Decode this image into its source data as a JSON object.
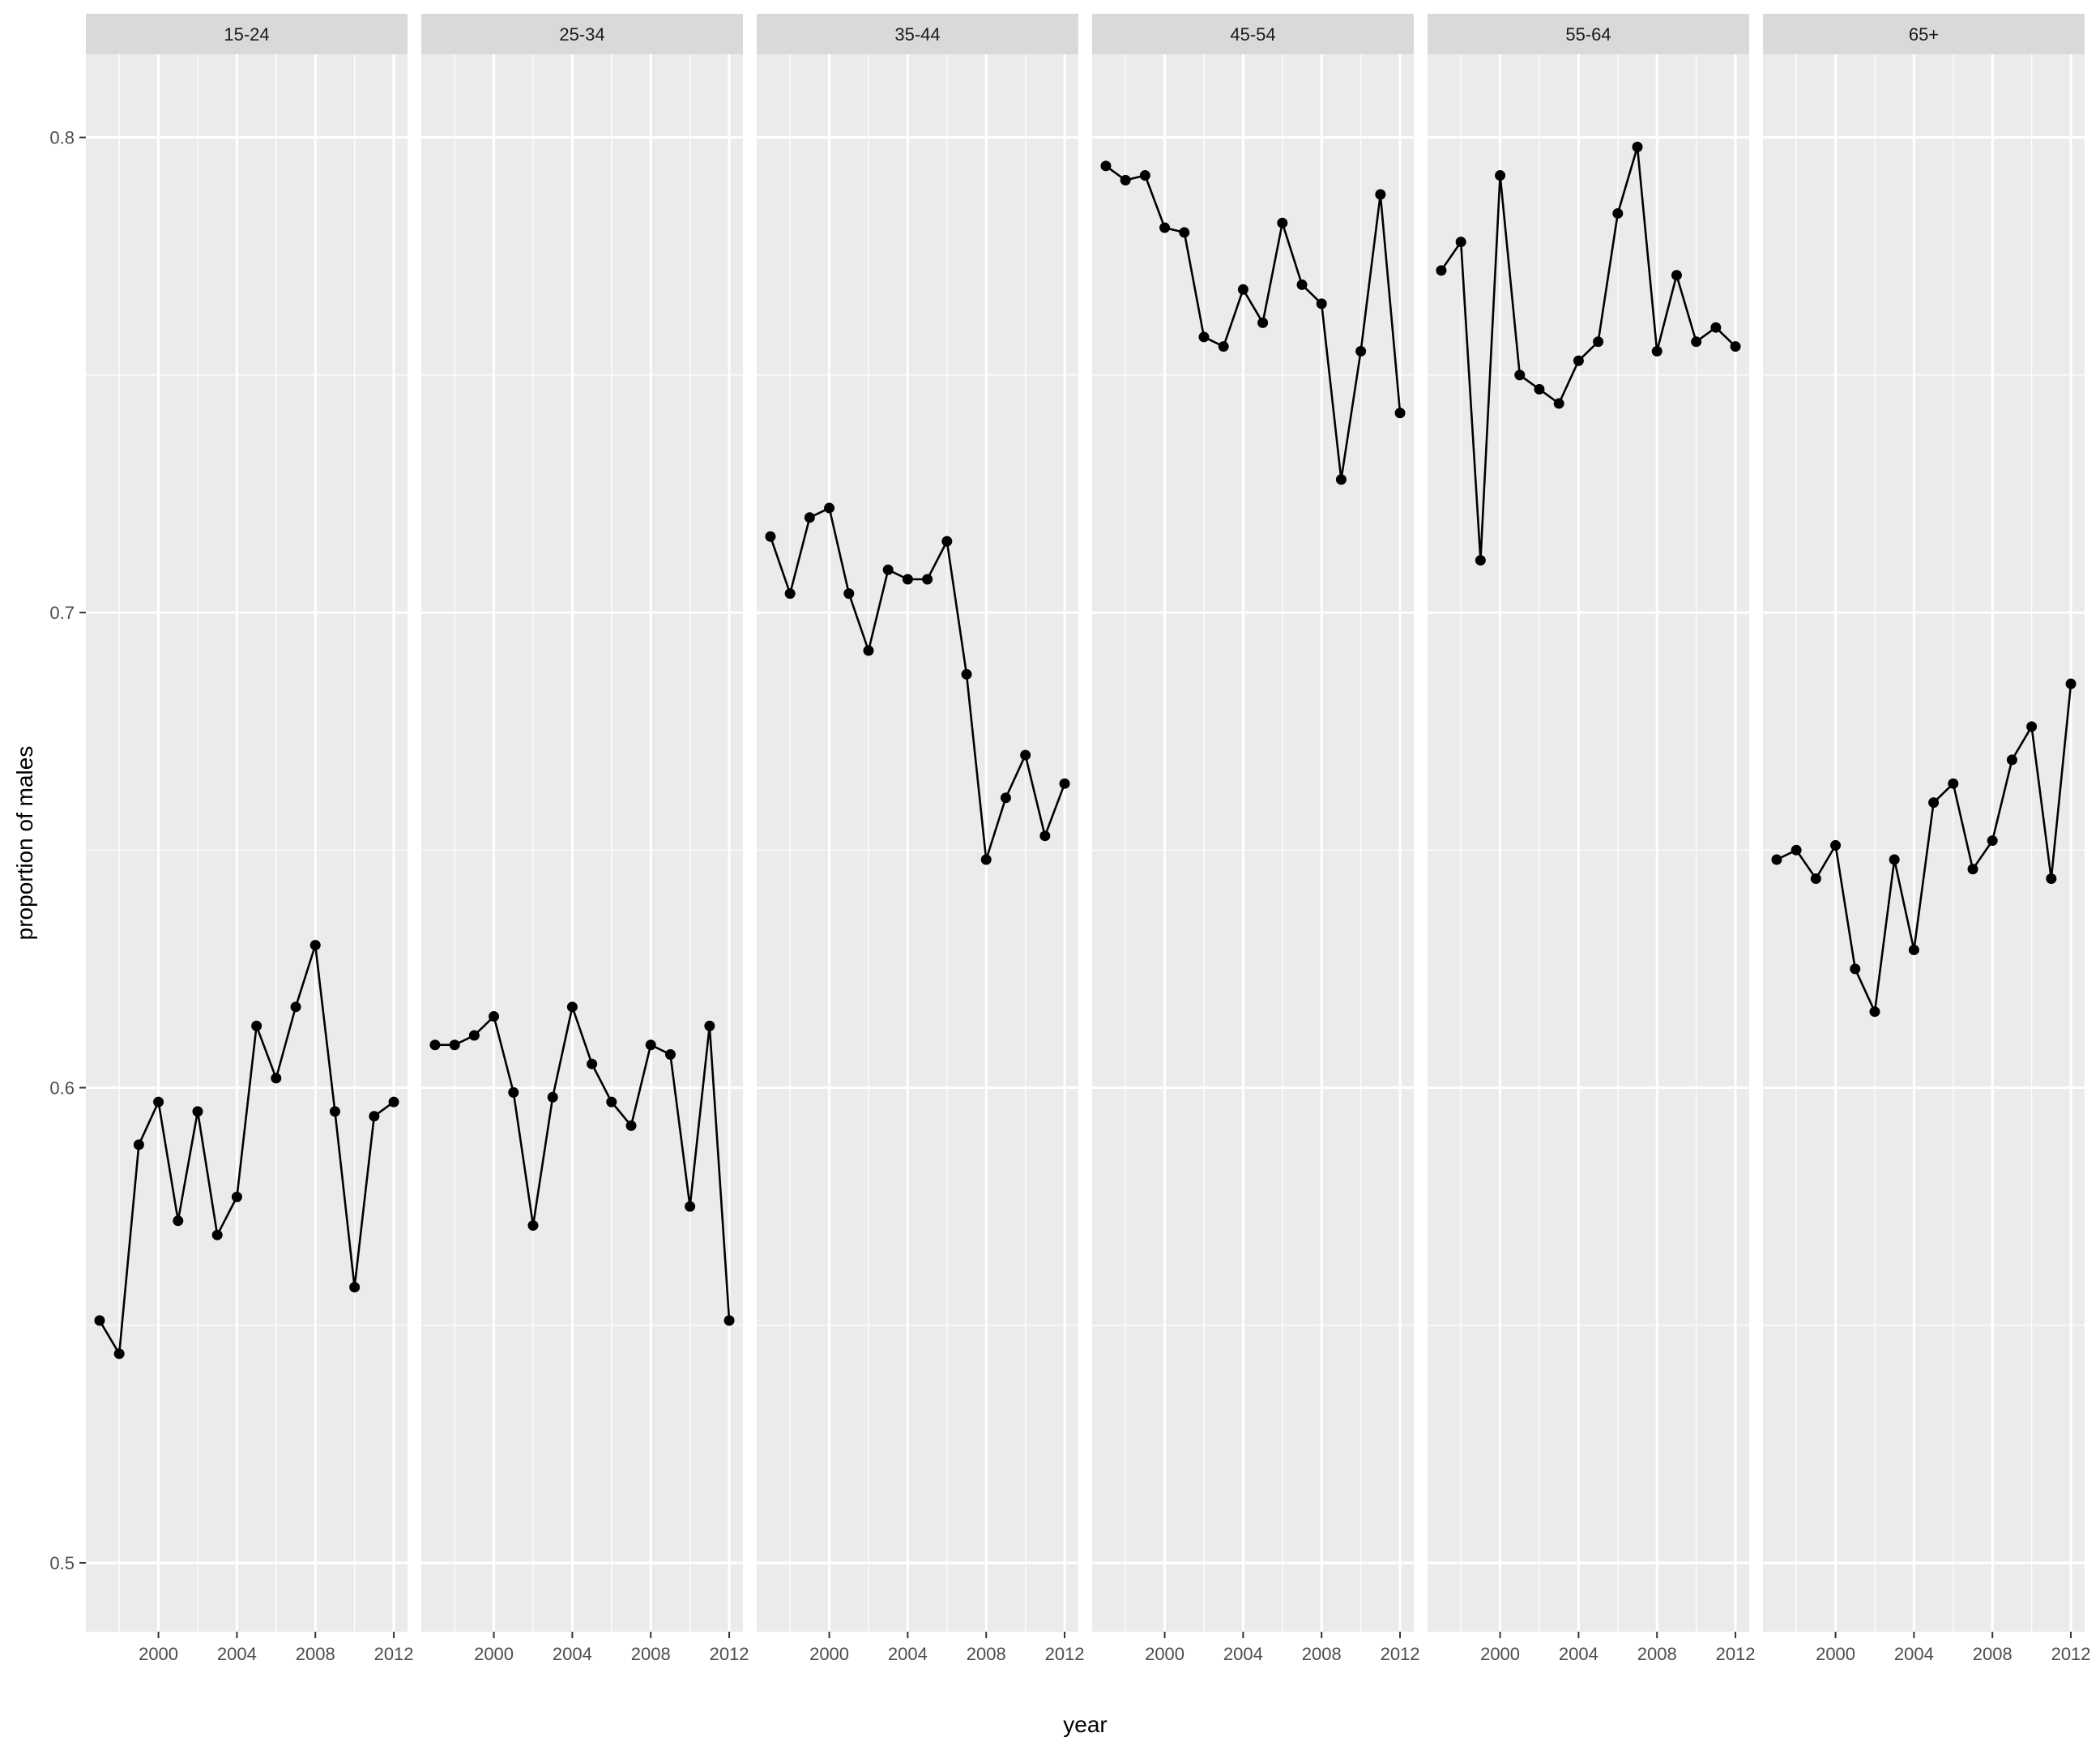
{
  "chart_data": {
    "type": "line",
    "facet_by": "age group",
    "xlabel": "year",
    "ylabel": "proportion of males",
    "x_ticks": [
      2000,
      2004,
      2008,
      2012
    ],
    "y_ticks": [
      0.5,
      0.6,
      0.7,
      0.8
    ],
    "y_tick_labels": [
      "0.5",
      "0.6",
      "0.7",
      "0.8"
    ],
    "xlim": [
      1996.3,
      2012.7
    ],
    "ylim": [
      0.4855,
      0.8175
    ],
    "grid": true,
    "markers": true,
    "x": [
      1997,
      1998,
      1999,
      2000,
      2001,
      2002,
      2003,
      2004,
      2005,
      2006,
      2007,
      2008,
      2009,
      2010,
      2011,
      2012
    ],
    "facets": [
      {
        "label": "15-24",
        "values": [
          0.551,
          0.544,
          0.588,
          0.597,
          0.572,
          0.595,
          0.569,
          0.577,
          0.613,
          0.602,
          0.617,
          0.63,
          0.595,
          0.558,
          0.594,
          0.597
        ]
      },
      {
        "label": "25-34",
        "values": [
          0.609,
          0.609,
          0.611,
          0.615,
          0.599,
          0.571,
          0.598,
          0.617,
          0.605,
          0.597,
          0.592,
          0.609,
          0.607,
          0.575,
          0.613,
          0.551
        ]
      },
      {
        "label": "35-44",
        "values": [
          0.716,
          0.704,
          0.72,
          0.722,
          0.704,
          0.692,
          0.709,
          0.707,
          0.707,
          0.715,
          0.687,
          0.648,
          0.661,
          0.67,
          0.653,
          0.664
        ]
      },
      {
        "label": "45-54",
        "values": [
          0.794,
          0.791,
          0.792,
          0.781,
          0.78,
          0.758,
          0.756,
          0.768,
          0.761,
          0.782,
          0.769,
          0.765,
          0.728,
          0.755,
          0.788,
          0.742
        ]
      },
      {
        "label": "55-64",
        "values": [
          0.772,
          0.778,
          0.711,
          0.792,
          0.75,
          0.747,
          0.744,
          0.753,
          0.757,
          0.784,
          0.798,
          0.755,
          0.771,
          0.757,
          0.76,
          0.756
        ]
      },
      {
        "label": "65+",
        "values": [
          0.648,
          0.65,
          0.644,
          0.651,
          0.625,
          0.616,
          0.648,
          0.629,
          0.66,
          0.664,
          0.646,
          0.652,
          0.669,
          0.676,
          0.644,
          0.685
        ]
      }
    ]
  }
}
